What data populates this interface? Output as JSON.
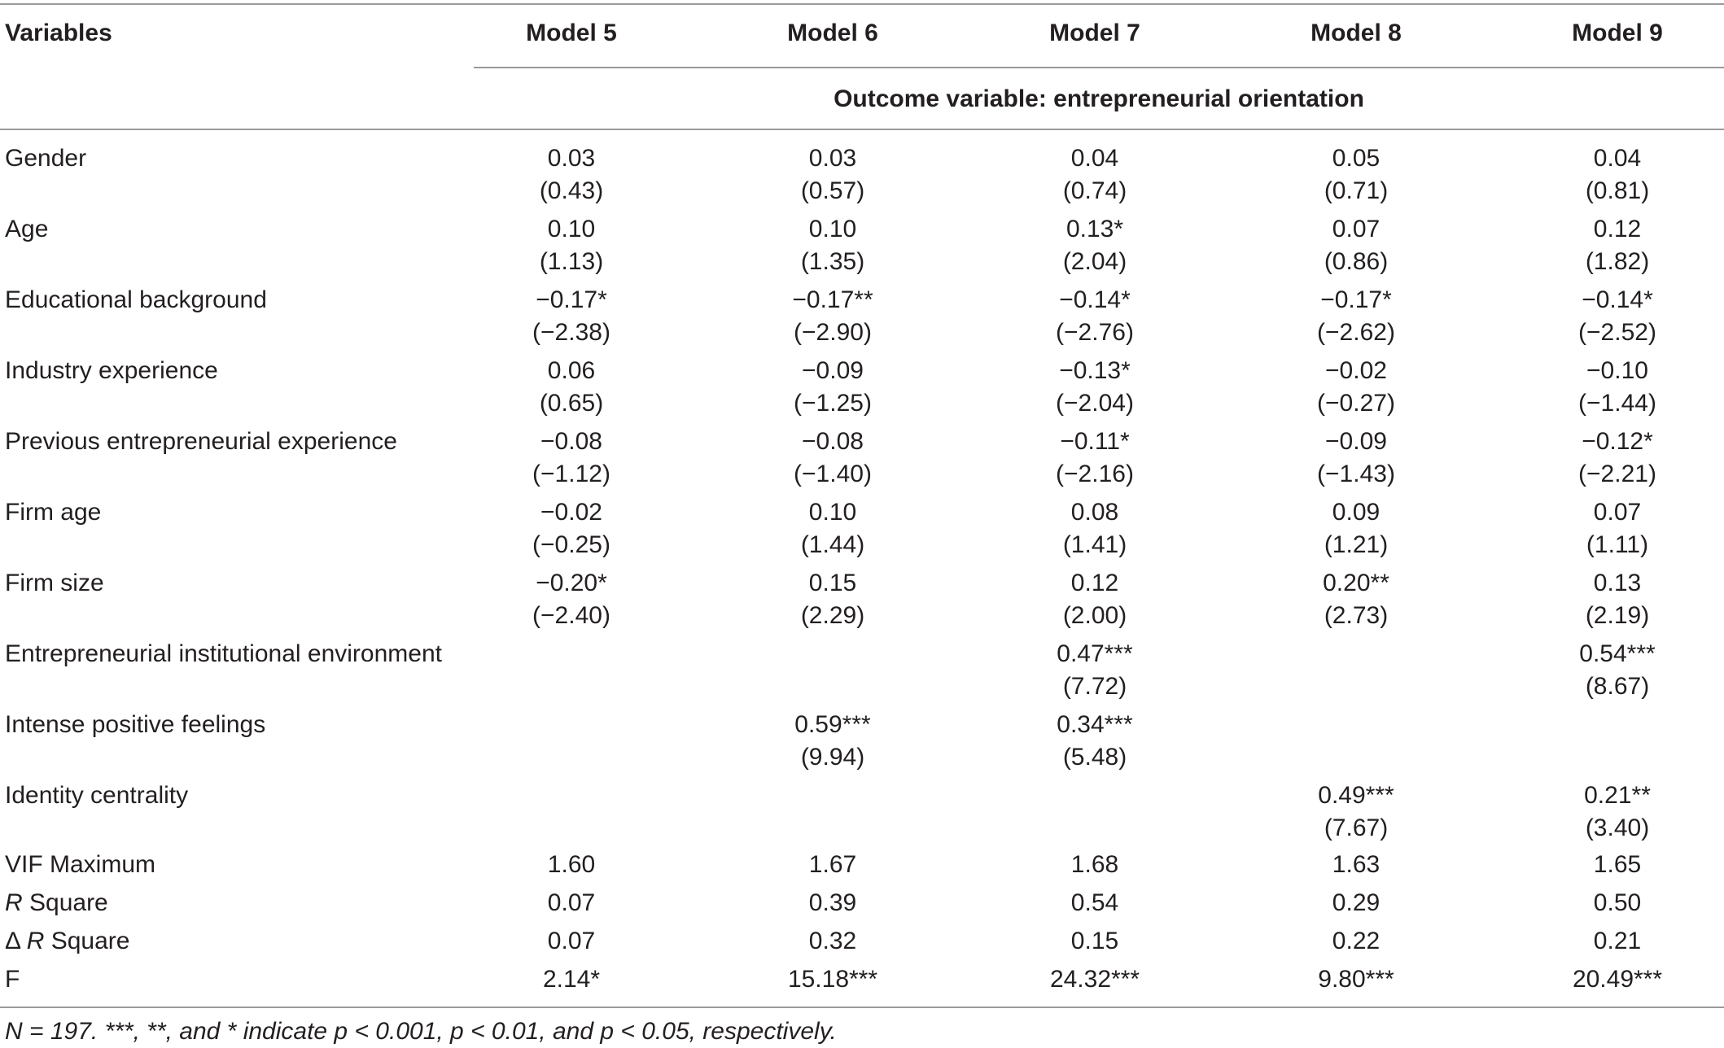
{
  "table": {
    "header": {
      "variables_label": "Variables",
      "models": [
        "Model 5",
        "Model 6",
        "Model 7",
        "Model 8",
        "Model 9"
      ]
    },
    "subheader": "Outcome variable: entrepreneurial orientation",
    "rows": [
      {
        "label": "Gender",
        "coef": [
          "0.03",
          "0.03",
          "0.04",
          "0.05",
          "0.04"
        ],
        "t": [
          "(0.43)",
          "(0.57)",
          "(0.74)",
          "(0.71)",
          "(0.81)"
        ]
      },
      {
        "label": "Age",
        "coef": [
          "0.10",
          "0.10",
          "0.13*",
          "0.07",
          "0.12"
        ],
        "t": [
          "(1.13)",
          "(1.35)",
          "(2.04)",
          "(0.86)",
          "(1.82)"
        ]
      },
      {
        "label": "Educational background",
        "coef": [
          "−0.17*",
          "−0.17**",
          "−0.14*",
          "−0.17*",
          "−0.14*"
        ],
        "t": [
          "(−2.38)",
          "(−2.90)",
          "(−2.76)",
          "(−2.62)",
          "(−2.52)"
        ]
      },
      {
        "label": "Industry experience",
        "coef": [
          "0.06",
          "−0.09",
          "−0.13*",
          "−0.02",
          "−0.10"
        ],
        "t": [
          "(0.65)",
          "(−1.25)",
          "(−2.04)",
          "(−0.27)",
          "(−1.44)"
        ]
      },
      {
        "label": "Previous entrepreneurial experience",
        "coef": [
          "−0.08",
          "−0.08",
          "−0.11*",
          "−0.09",
          "−0.12*"
        ],
        "t": [
          "(−1.12)",
          "(−1.40)",
          "(−2.16)",
          "(−1.43)",
          "(−2.21)"
        ]
      },
      {
        "label": "Firm age",
        "coef": [
          "−0.02",
          "0.10",
          "0.08",
          "0.09",
          "0.07"
        ],
        "t": [
          "(−0.25)",
          "(1.44)",
          "(1.41)",
          "(1.21)",
          "(1.11)"
        ]
      },
      {
        "label": "Firm size",
        "coef": [
          "−0.20*",
          "0.15",
          "0.12",
          "0.20**",
          "0.13"
        ],
        "t": [
          "(−2.40)",
          "(2.29)",
          "(2.00)",
          "(2.73)",
          "(2.19)"
        ]
      },
      {
        "label": "Entrepreneurial institutional environment",
        "coef": [
          "",
          "",
          "0.47***",
          "",
          "0.54***"
        ],
        "t": [
          "",
          "",
          "(7.72)",
          "",
          "(8.67)"
        ]
      },
      {
        "label": "Intense positive feelings",
        "coef": [
          "",
          "0.59***",
          "0.34***",
          "",
          ""
        ],
        "t": [
          "",
          "(9.94)",
          "(5.48)",
          "",
          ""
        ]
      },
      {
        "label": "Identity centrality",
        "coef": [
          "",
          "",
          "",
          "0.49***",
          "0.21**"
        ],
        "t": [
          "",
          "",
          "",
          "(7.67)",
          "(3.40)"
        ]
      }
    ],
    "stats": [
      {
        "label": "VIF Maximum",
        "values": [
          "1.60",
          "1.67",
          "1.68",
          "1.63",
          "1.65"
        ]
      },
      {
        "label_pre": "",
        "label_italic": "R",
        "label_post": " Square",
        "values": [
          "0.07",
          "0.39",
          "0.54",
          "0.29",
          "0.50"
        ]
      },
      {
        "label_pre": "Δ ",
        "label_italic": "R",
        "label_post": " Square",
        "values": [
          "0.07",
          "0.32",
          "0.15",
          "0.22",
          "0.21"
        ]
      },
      {
        "label": "F",
        "values": [
          "2.14*",
          "15.18***",
          "24.32***",
          "9.80***",
          "20.49***"
        ]
      }
    ],
    "footnote": "N = 197. ***, **, and * indicate p < 0.001, p < 0.01, and p < 0.05, respectively."
  }
}
